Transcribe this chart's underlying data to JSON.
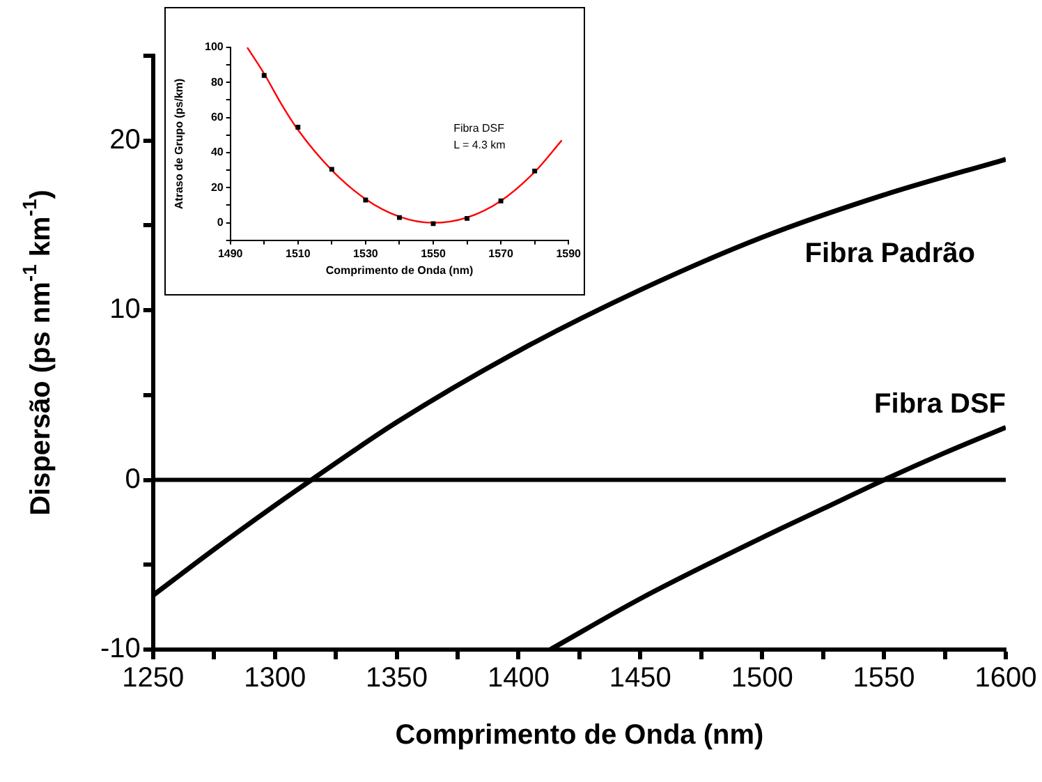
{
  "chart_data": [
    {
      "type": "line",
      "xlabel": "Comprimento de Onda (nm)",
      "ylabel": "Dispersão (ps nm$^{-1}$ km$^{-1}$)",
      "xlim": [
        1250,
        1600
      ],
      "xticks": [
        1250,
        {
          "value": 1275,
          "label": null
        },
        1300,
        {
          "value": 1325,
          "label": null
        },
        1350,
        {
          "value": 1375,
          "label": null
        },
        1400,
        {
          "value": 1425,
          "label": null
        },
        1450,
        {
          "value": 1475,
          "label": null
        },
        1500,
        {
          "value": 1525,
          "label": null
        },
        1550,
        {
          "value": 1575,
          "label": null
        },
        1600
      ],
      "ylim": [
        -10,
        25
      ],
      "yticks": [
        -10,
        {
          "value": -5,
          "label": null
        },
        0,
        {
          "value": 5,
          "label": null
        },
        10,
        {
          "value": 15,
          "label": null
        },
        20,
        {
          "value": 25,
          "label": null
        }
      ],
      "marker": "none",
      "grid": false,
      "legend": false,
      "ref_lines": [
        {
          "axis": "y",
          "value": 0,
          "color": "#000000"
        }
      ],
      "series": [
        {
          "name": "Fibra Padrão",
          "color": "#000000",
          "x": [
            1250,
            1275,
            1300,
            1315,
            1350,
            1400,
            1450,
            1500,
            1550,
            1600
          ],
          "values": [
            -6.8,
            -4.1,
            -1.5,
            0,
            3.4,
            7.6,
            11.2,
            14.3,
            16.8,
            18.9
          ]
        },
        {
          "name": "Fibra DSF",
          "color": "#000000",
          "x": [
            1413,
            1450,
            1500,
            1525,
            1550,
            1575,
            1600
          ],
          "values": [
            -10,
            -7.0,
            -3.4,
            -1.7,
            0,
            1.6,
            3.1
          ]
        }
      ]
    },
    {
      "type": "scatter",
      "xlabel": "Comprimento de Onda (nm)",
      "ylabel": "Atraso de Grupo (ps/km)",
      "xlim": [
        1490,
        1590
      ],
      "xticks": [
        1490,
        {
          "value": 1500,
          "label": null
        },
        1510,
        {
          "value": 1520,
          "label": null
        },
        1530,
        {
          "value": 1540,
          "label": null
        },
        1550,
        {
          "value": 1560,
          "label": null
        },
        1570,
        {
          "value": 1580,
          "label": null
        },
        1590
      ],
      "ylim": [
        -10,
        100
      ],
      "yticks": [
        {
          "value": -10,
          "label": null
        },
        0,
        {
          "value": 10,
          "label": null
        },
        20,
        {
          "value": 30,
          "label": null
        },
        40,
        {
          "value": 50,
          "label": null
        },
        60,
        {
          "value": 70,
          "label": null
        },
        80,
        {
          "value": 90,
          "label": null
        },
        100
      ],
      "grid": false,
      "legend": false,
      "annotations": [
        "Fibra DSF",
        "L = 4.3 km"
      ],
      "series": [
        {
          "marker": "square",
          "color": "#000000",
          "x": [
            1500,
            1510,
            1520,
            1530,
            1540,
            1550,
            1560,
            1570,
            1580
          ],
          "values": [
            84,
            54.5,
            30.5,
            13,
            3,
            -0.5,
            2.5,
            12.5,
            29.5
          ]
        },
        {
          "type": "line",
          "marker": "none",
          "color": "#ff0000",
          "x": [
            1495,
            1500,
            1505,
            1510,
            1520,
            1530,
            1540,
            1550,
            1560,
            1570,
            1580,
            1588
          ],
          "values": [
            100,
            85,
            68,
            53,
            30,
            13.5,
            3.5,
            0,
            3,
            12.5,
            29,
            47
          ]
        }
      ]
    }
  ]
}
